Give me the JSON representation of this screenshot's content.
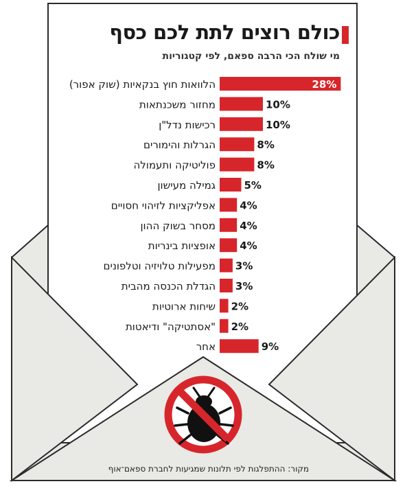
{
  "title": "כולם רוצים לתת לכם כסף",
  "subtitle": "מי שולח הכי הרבה ספאם, לפי קטגוריות",
  "source": "מקור: ההתפלגות לפי תלונות שמגיעות לחברת ספאם־אוף",
  "colors": {
    "bar": "#d7262b",
    "envelope": "#e9e9e5",
    "envelope_stroke": "#2a2a2a",
    "prohibit": "#d7262b"
  },
  "icon": "spam-bug-prohibited-icon",
  "chart_data": {
    "type": "bar",
    "orientation": "horizontal",
    "value_suffix": "%",
    "categories": [
      "הלוואות חוץ בנקאיות (שוק אפור)",
      "מחזור משכנתאות",
      "רכישות נדל\"ן",
      "הגרלות והימורים",
      "פוליטיקה ותעמולה",
      "גמילה מעישון",
      "אפליקציות לזיהוי חסויים",
      "מסחר בשוק ההון",
      "אופציות בינריות",
      "מפעילות טלויזיה וטלפונים",
      "הגדלת הכנסה מהבית",
      "שיחות ארוטיות",
      "\"אסתטיקה\" ודיאטות",
      "אחר"
    ],
    "values": [
      28,
      10,
      10,
      8,
      8,
      5,
      4,
      4,
      4,
      3,
      3,
      2,
      2,
      9
    ],
    "labels": [
      "28%",
      "10%",
      "10%",
      "8%",
      "8%",
      "5%",
      "4%",
      "4%",
      "4%",
      "3%",
      "3%",
      "2%",
      "2%",
      "9%"
    ]
  }
}
